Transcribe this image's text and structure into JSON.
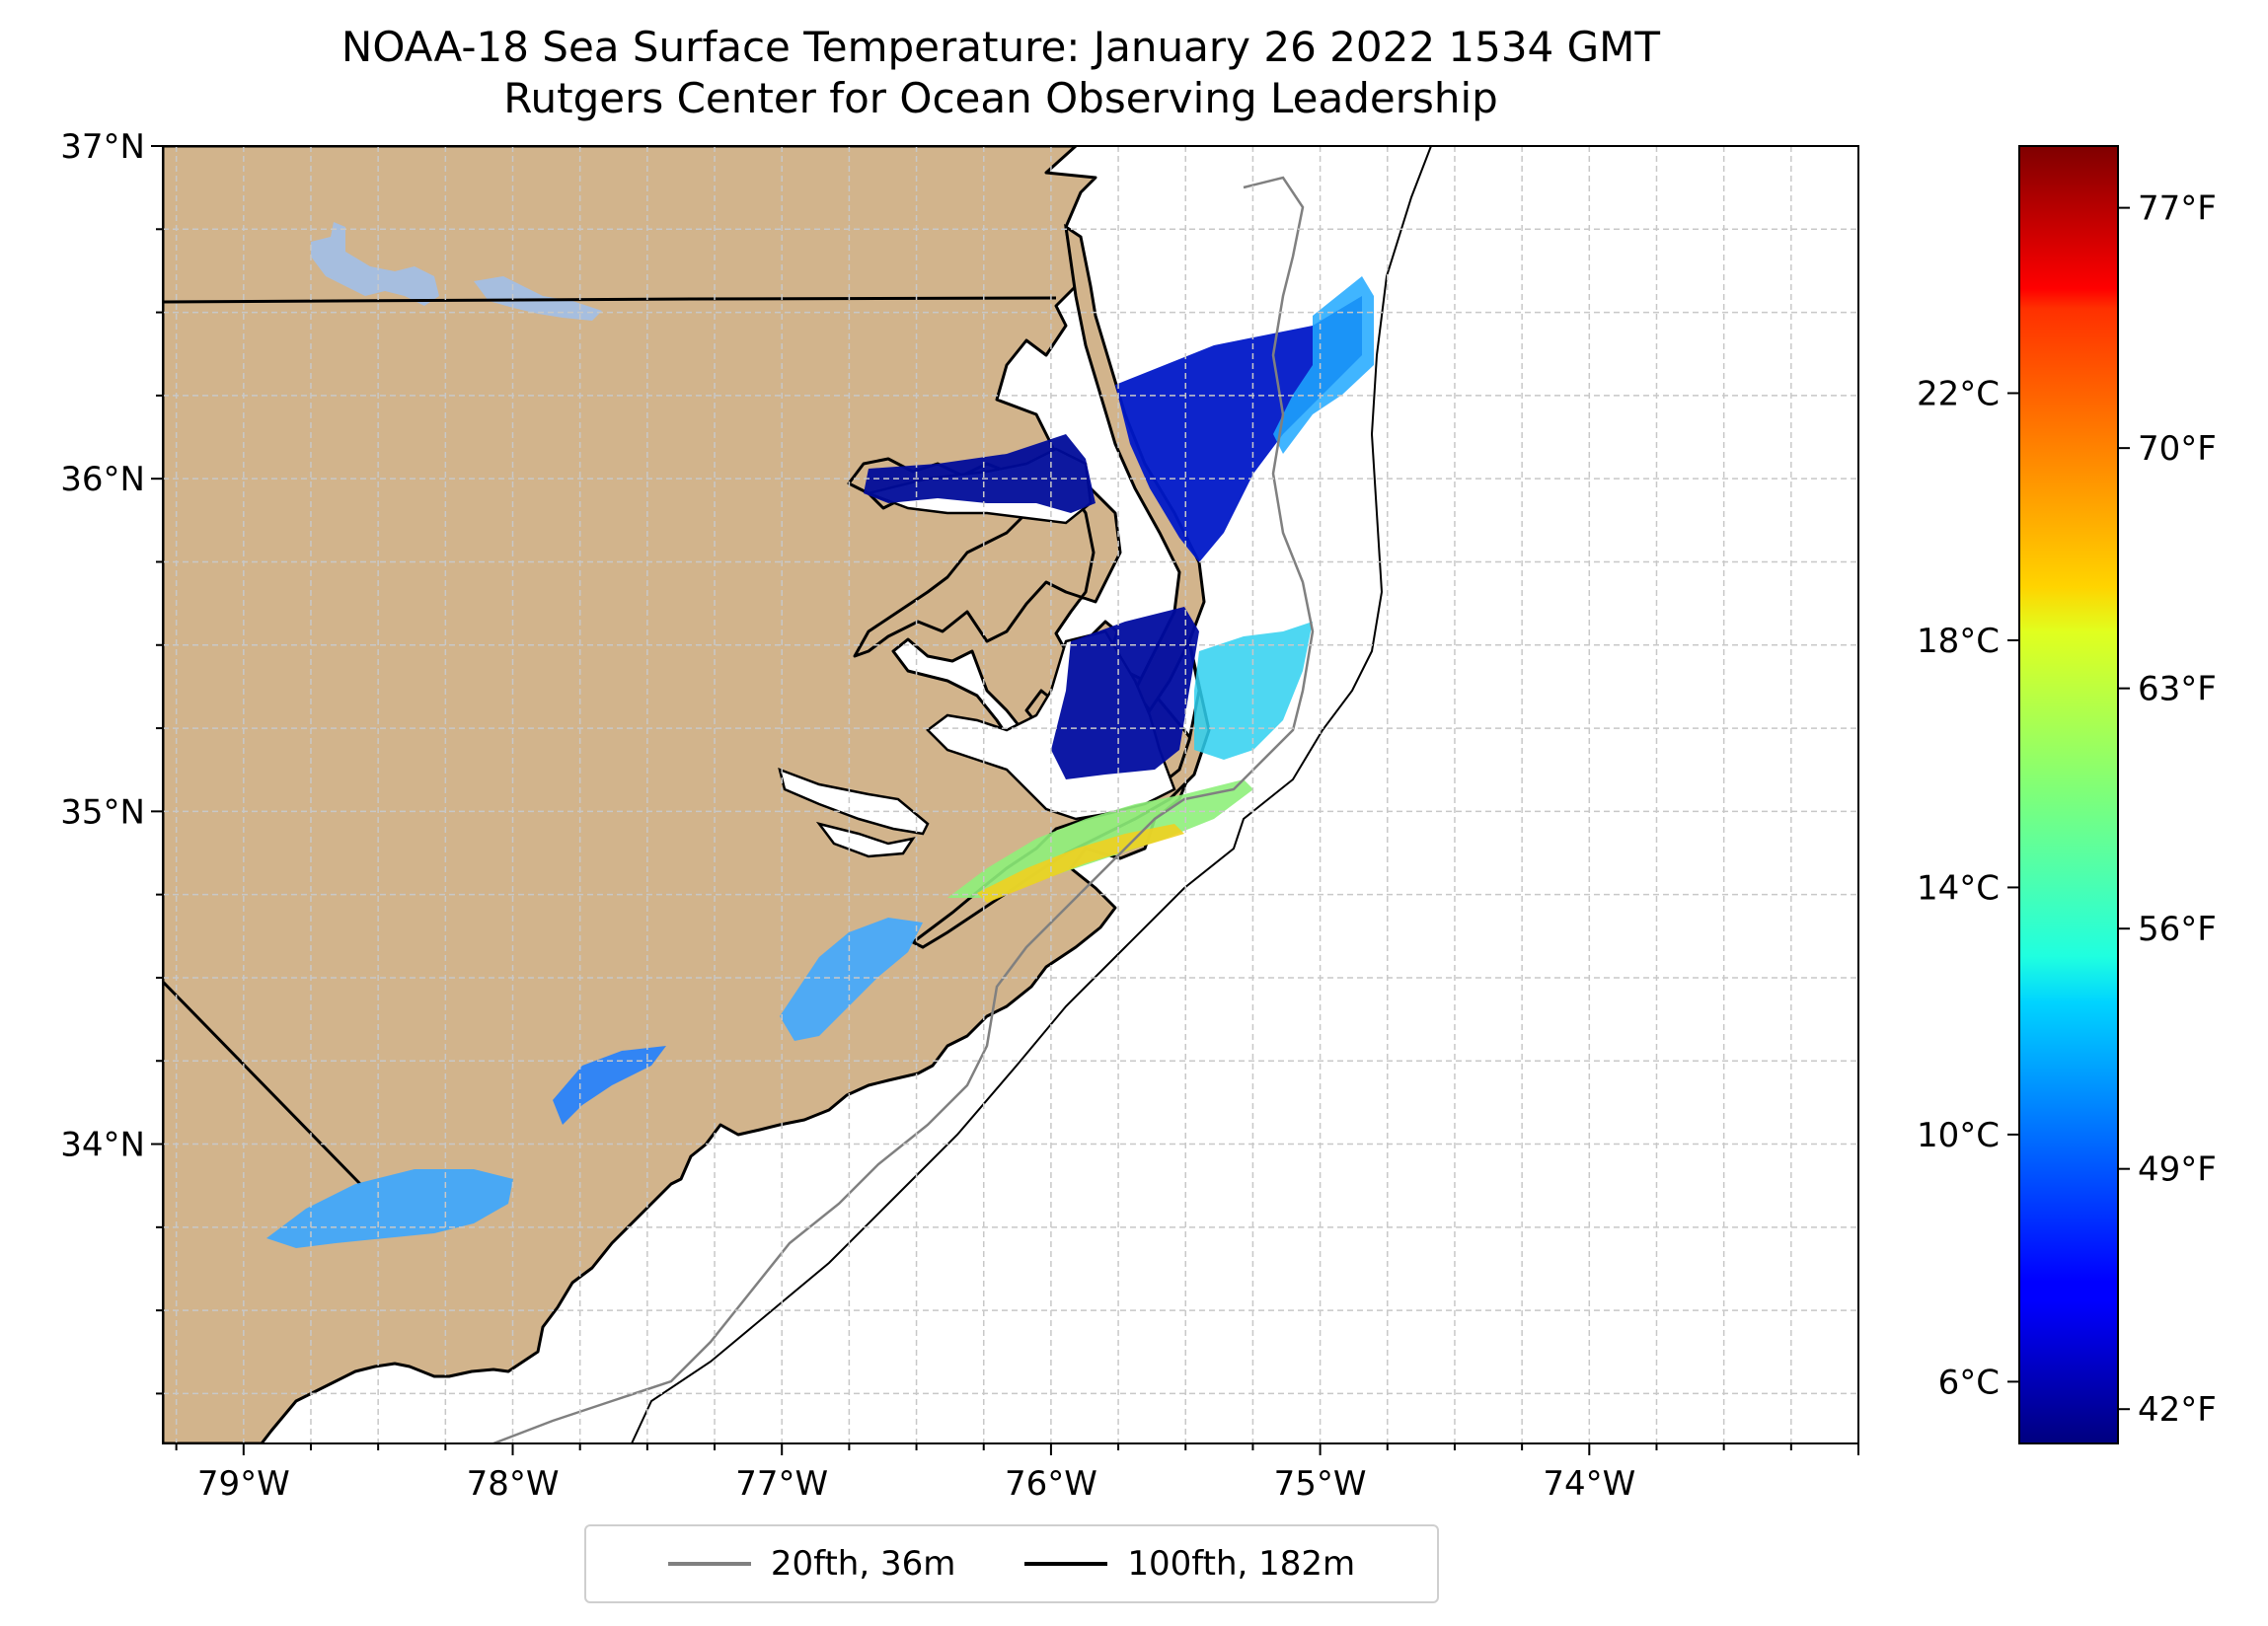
{
  "title": {
    "line1": "NOAA-18 Sea Surface Temperature: January 26 2022 1534 GMT",
    "line2": "Rutgers Center for Ocean Observing Leadership"
  },
  "map": {
    "extent": {
      "lon_min": -79.3,
      "lon_max": -73.0,
      "lat_min": 33.1,
      "lat_max": 37.0
    },
    "lon_ticks": [
      {
        "value": -79,
        "label": "79°W"
      },
      {
        "value": -78,
        "label": "78°W"
      },
      {
        "value": -77,
        "label": "77°W"
      },
      {
        "value": -76,
        "label": "76°W"
      },
      {
        "value": -75,
        "label": "75°W"
      },
      {
        "value": -74,
        "label": "74°W"
      }
    ],
    "lat_ticks": [
      {
        "value": 37,
        "label": "37°N"
      },
      {
        "value": 36,
        "label": "36°N"
      },
      {
        "value": 35,
        "label": "35°N"
      },
      {
        "value": 34,
        "label": "34°N"
      }
    ],
    "grid": true,
    "colors": {
      "land": "#d2b48c",
      "lakes": "#a6bedf",
      "ocean": "#ffffff",
      "coastline": "#000000",
      "contour_20fth": "#808080",
      "contour_100fth": "#000000"
    }
  },
  "legend": {
    "placement": "bottom-center",
    "entries": [
      {
        "label": "20fth, 36m",
        "color": "#808080"
      },
      {
        "label": "100fth, 182m",
        "color": "#000000"
      }
    ]
  },
  "colorbar": {
    "colormap": "jet",
    "range_c": [
      5,
      26
    ],
    "celsius_ticks": [
      {
        "value": 6,
        "label": "6°C"
      },
      {
        "value": 10,
        "label": "10°C"
      },
      {
        "value": 14,
        "label": "14°C"
      },
      {
        "value": 18,
        "label": "18°C"
      },
      {
        "value": 22,
        "label": "22°C"
      }
    ],
    "fahrenheit_ticks": [
      {
        "value": 42,
        "label": "42°F"
      },
      {
        "value": 49,
        "label": "49°F"
      },
      {
        "value": 56,
        "label": "56°F"
      },
      {
        "value": 63,
        "label": "63°F"
      },
      {
        "value": 70,
        "label": "70°F"
      },
      {
        "value": 77,
        "label": "77°F"
      }
    ]
  }
}
